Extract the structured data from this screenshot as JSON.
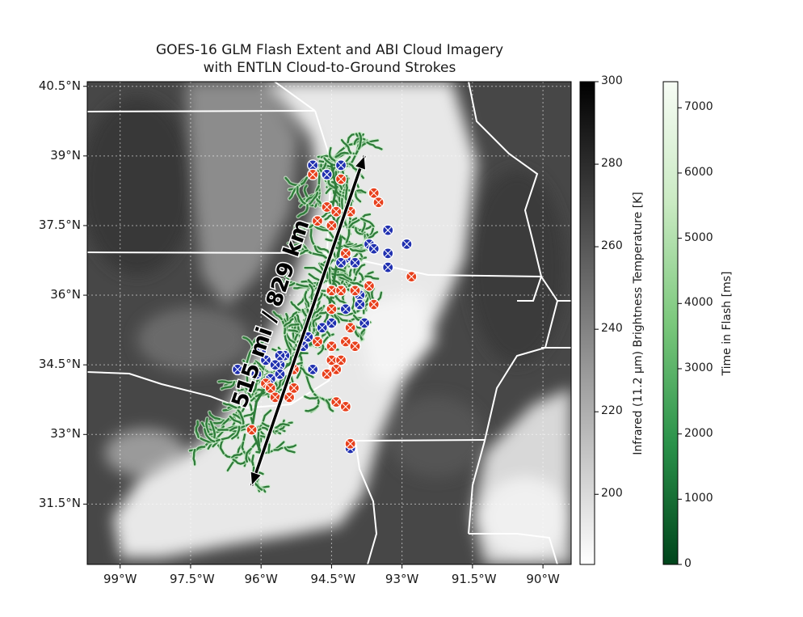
{
  "figure": {
    "title_line_1": "GOES-16 GLM Flash Extent and ABI Cloud Imagery",
    "title_line_2": "with ENTLN Cloud-to-Ground Strokes"
  },
  "map": {
    "lon_range": [
      -99.7,
      -89.4
    ],
    "lat_range": [
      30.2,
      40.6
    ],
    "lat_ticks": [
      {
        "value": 40.5,
        "label": "40.5°N"
      },
      {
        "value": 39,
        "label": "39°N"
      },
      {
        "value": 37.5,
        "label": "37.5°N"
      },
      {
        "value": 36,
        "label": "36°N"
      },
      {
        "value": 34.5,
        "label": "34.5°N"
      },
      {
        "value": 33,
        "label": "33°N"
      },
      {
        "value": 31.5,
        "label": "31.5°N"
      }
    ],
    "lon_ticks": [
      {
        "value": -99,
        "label": "99°W"
      },
      {
        "value": -97.5,
        "label": "97.5°W"
      },
      {
        "value": -96,
        "label": "96°W"
      },
      {
        "value": -94.5,
        "label": "94.5°W"
      },
      {
        "value": -93,
        "label": "93°W"
      },
      {
        "value": -91.5,
        "label": "91.5°W"
      },
      {
        "value": -90,
        "label": "90°W"
      }
    ],
    "distance_label": "515 mi / 829 km",
    "arrow": {
      "start": [
        -96.2,
        31.9
      ],
      "end": [
        -93.8,
        39.0
      ]
    },
    "colors": {
      "background": "#4a4a4a",
      "cloud": "#eeeeee",
      "state_border": "#ffffff",
      "flash_green": "#3f8f3f",
      "stroke_red": "#e8401c",
      "stroke_blue": "#2030b0"
    }
  },
  "ir_colorbar": {
    "label": "Infrared (11.2 μm) Brightness Temperature [K]",
    "range": [
      183,
      300
    ],
    "ticks": [
      {
        "value": 300,
        "label": "300"
      },
      {
        "value": 280,
        "label": "280"
      },
      {
        "value": 260,
        "label": "260"
      },
      {
        "value": 240,
        "label": "240"
      },
      {
        "value": 220,
        "label": "220"
      },
      {
        "value": 200,
        "label": "200"
      }
    ]
  },
  "time_colorbar": {
    "label": "Time in Flash [ms]",
    "range": [
      0,
      7400
    ],
    "ticks": [
      {
        "value": 7000,
        "label": "7000"
      },
      {
        "value": 6000,
        "label": "6000"
      },
      {
        "value": 5000,
        "label": "5000"
      },
      {
        "value": 4000,
        "label": "4000"
      },
      {
        "value": 3000,
        "label": "3000"
      },
      {
        "value": 2000,
        "label": "2000"
      },
      {
        "value": 1000,
        "label": "1000"
      },
      {
        "value": 0,
        "label": "0"
      }
    ]
  },
  "strokes": {
    "positive": [
      [
        -94.9,
        38.6
      ],
      [
        -94.3,
        38.5
      ],
      [
        -93.6,
        38.2
      ],
      [
        -93.5,
        38.0
      ],
      [
        -94.6,
        37.9
      ],
      [
        -94.4,
        37.8
      ],
      [
        -94.1,
        37.8
      ],
      [
        -94.8,
        37.6
      ],
      [
        -94.5,
        37.5
      ],
      [
        -94.2,
        36.9
      ],
      [
        -94.5,
        36.1
      ],
      [
        -94.3,
        36.1
      ],
      [
        -94.0,
        36.1
      ],
      [
        -93.7,
        36.2
      ],
      [
        -92.8,
        36.4
      ],
      [
        -93.6,
        35.8
      ],
      [
        -94.5,
        35.7
      ],
      [
        -94.1,
        35.3
      ],
      [
        -94.2,
        35.0
      ],
      [
        -94.8,
        35.0
      ],
      [
        -94.5,
        34.9
      ],
      [
        -94.0,
        34.9
      ],
      [
        -94.5,
        34.6
      ],
      [
        -94.3,
        34.6
      ],
      [
        -94.4,
        34.4
      ],
      [
        -94.6,
        34.3
      ],
      [
        -95.3,
        34.4
      ],
      [
        -95.9,
        34.1
      ],
      [
        -95.8,
        34.0
      ],
      [
        -95.4,
        33.8
      ],
      [
        -95.7,
        33.8
      ],
      [
        -94.4,
        33.7
      ],
      [
        -94.2,
        33.6
      ],
      [
        -96.2,
        33.1
      ],
      [
        -94.1,
        32.8
      ],
      [
        -95.3,
        34.0
      ]
    ],
    "negative": [
      [
        -94.9,
        38.8
      ],
      [
        -94.3,
        38.8
      ],
      [
        -94.6,
        38.6
      ],
      [
        -93.3,
        37.4
      ],
      [
        -93.7,
        37.1
      ],
      [
        -93.6,
        37.0
      ],
      [
        -92.9,
        37.1
      ],
      [
        -93.3,
        36.9
      ],
      [
        -94.2,
        36.8
      ],
      [
        -94.0,
        36.7
      ],
      [
        -94.3,
        36.7
      ],
      [
        -93.3,
        36.6
      ],
      [
        -93.9,
        36.0
      ],
      [
        -93.9,
        35.8
      ],
      [
        -94.2,
        35.7
      ],
      [
        -94.5,
        35.4
      ],
      [
        -94.7,
        35.3
      ],
      [
        -93.8,
        35.4
      ],
      [
        -95.0,
        35.1
      ],
      [
        -95.1,
        34.9
      ],
      [
        -95.5,
        34.7
      ],
      [
        -95.6,
        34.5
      ],
      [
        -96.5,
        34.4
      ],
      [
        -96.1,
        34.3
      ],
      [
        -95.8,
        34.2
      ],
      [
        -95.6,
        34.3
      ],
      [
        -95.7,
        34.5
      ],
      [
        -95.6,
        34.7
      ],
      [
        -95.9,
        34.6
      ],
      [
        -94.9,
        34.4
      ],
      [
        -94.1,
        32.7
      ],
      [
        -96.0,
        34.8
      ]
    ]
  }
}
